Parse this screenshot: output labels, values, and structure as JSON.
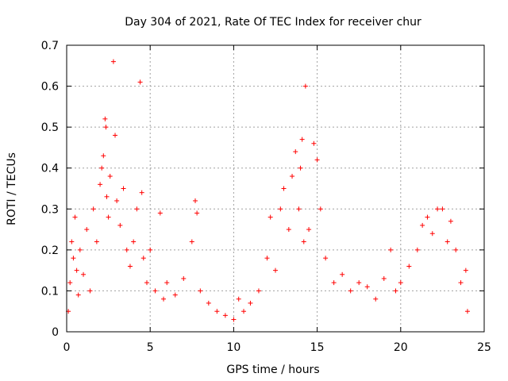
{
  "chart_data": {
    "type": "scatter",
    "title": "Day 304 of 2021, Rate Of TEC Index for receiver chur",
    "xlabel": "GPS time / hours",
    "ylabel": "ROTI / TECUs",
    "xlim": [
      0,
      25
    ],
    "ylim": [
      0,
      0.7
    ],
    "xticks": [
      "0",
      "5",
      "10",
      "15",
      "20",
      "25"
    ],
    "yticks": [
      "0",
      "0.1",
      "0.2",
      "0.3",
      "0.4",
      "0.5",
      "0.6",
      "0.7"
    ],
    "grid": true,
    "marker": "plus",
    "color": "#ff0000",
    "series": [
      {
        "values": [
          [
            0.1,
            0.05
          ],
          [
            0.2,
            0.12
          ],
          [
            0.3,
            0.22
          ],
          [
            0.4,
            0.18
          ],
          [
            0.5,
            0.28
          ],
          [
            0.6,
            0.15
          ],
          [
            0.7,
            0.09
          ],
          [
            0.8,
            0.2
          ],
          [
            1.0,
            0.14
          ],
          [
            1.2,
            0.25
          ],
          [
            1.4,
            0.1
          ],
          [
            1.6,
            0.3
          ],
          [
            1.8,
            0.22
          ],
          [
            2.0,
            0.36
          ],
          [
            2.1,
            0.4
          ],
          [
            2.2,
            0.43
          ],
          [
            2.3,
            0.52
          ],
          [
            2.35,
            0.5
          ],
          [
            2.4,
            0.33
          ],
          [
            2.5,
            0.28
          ],
          [
            2.6,
            0.38
          ],
          [
            2.8,
            0.66
          ],
          [
            2.9,
            0.48
          ],
          [
            3.0,
            0.32
          ],
          [
            3.2,
            0.26
          ],
          [
            3.4,
            0.35
          ],
          [
            3.6,
            0.2
          ],
          [
            3.8,
            0.16
          ],
          [
            4.0,
            0.22
          ],
          [
            4.2,
            0.3
          ],
          [
            4.4,
            0.61
          ],
          [
            4.5,
            0.34
          ],
          [
            4.6,
            0.18
          ],
          [
            4.8,
            0.12
          ],
          [
            5.0,
            0.2
          ],
          [
            5.3,
            0.1
          ],
          [
            5.6,
            0.29
          ],
          [
            5.8,
            0.08
          ],
          [
            6.0,
            0.12
          ],
          [
            6.5,
            0.09
          ],
          [
            7.0,
            0.13
          ],
          [
            7.5,
            0.22
          ],
          [
            7.7,
            0.32
          ],
          [
            7.8,
            0.29
          ],
          [
            8.0,
            0.1
          ],
          [
            8.5,
            0.07
          ],
          [
            9.0,
            0.05
          ],
          [
            9.5,
            0.04
          ],
          [
            10.0,
            0.03
          ],
          [
            10.3,
            0.08
          ],
          [
            10.6,
            0.05
          ],
          [
            11.0,
            0.07
          ],
          [
            11.5,
            0.1
          ],
          [
            12.0,
            0.18
          ],
          [
            12.2,
            0.28
          ],
          [
            12.5,
            0.15
          ],
          [
            12.8,
            0.3
          ],
          [
            13.0,
            0.35
          ],
          [
            13.3,
            0.25
          ],
          [
            13.5,
            0.38
          ],
          [
            13.7,
            0.44
          ],
          [
            13.9,
            0.3
          ],
          [
            14.0,
            0.4
          ],
          [
            14.1,
            0.47
          ],
          [
            14.2,
            0.22
          ],
          [
            14.3,
            0.6
          ],
          [
            14.5,
            0.25
          ],
          [
            14.8,
            0.46
          ],
          [
            15.0,
            0.42
          ],
          [
            15.2,
            0.3
          ],
          [
            15.5,
            0.18
          ],
          [
            16.0,
            0.12
          ],
          [
            16.5,
            0.14
          ],
          [
            17.0,
            0.1
          ],
          [
            17.5,
            0.12
          ],
          [
            18.0,
            0.11
          ],
          [
            18.5,
            0.08
          ],
          [
            19.0,
            0.13
          ],
          [
            19.4,
            0.2
          ],
          [
            19.7,
            0.1
          ],
          [
            20.0,
            0.12
          ],
          [
            20.5,
            0.16
          ],
          [
            21.0,
            0.2
          ],
          [
            21.3,
            0.26
          ],
          [
            21.6,
            0.28
          ],
          [
            21.9,
            0.24
          ],
          [
            22.2,
            0.3
          ],
          [
            22.5,
            0.3
          ],
          [
            22.8,
            0.22
          ],
          [
            23.0,
            0.27
          ],
          [
            23.3,
            0.2
          ],
          [
            23.6,
            0.12
          ],
          [
            23.9,
            0.15
          ],
          [
            24.0,
            0.05
          ]
        ]
      }
    ]
  }
}
